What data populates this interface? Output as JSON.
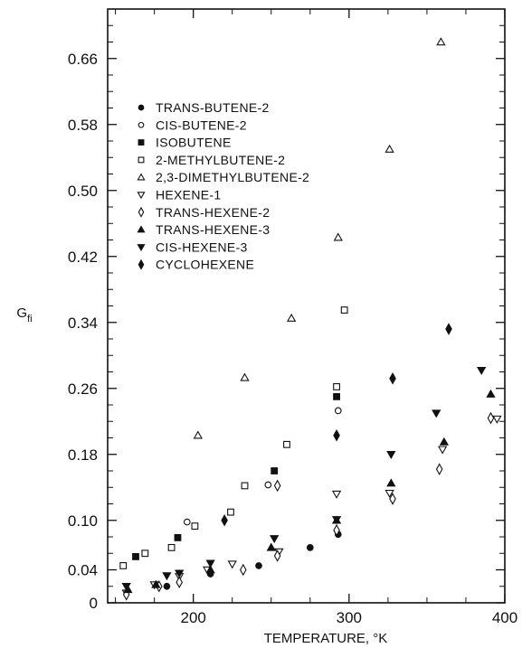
{
  "chart_data": {
    "type": "scatter",
    "xlabel": "TEMPERATURE, °K",
    "ylabel": "G",
    "ylabel_sub": "fi",
    "xlim": [
      145,
      400
    ],
    "ylim": [
      0,
      0.72
    ],
    "x_ticks": [
      {
        "value": 200,
        "label": "200"
      },
      {
        "value": 300,
        "label": "300"
      },
      {
        "value": 400,
        "label": "400"
      }
    ],
    "x_minor_ticks": [
      150,
      175,
      225,
      250,
      275,
      325,
      350,
      375
    ],
    "y_ticks": [
      {
        "value": 0,
        "label": "0"
      },
      {
        "value": 0.04,
        "label": "0.04"
      },
      {
        "value": 0.1,
        "label": "0.10"
      },
      {
        "value": 0.18,
        "label": "0.18"
      },
      {
        "value": 0.26,
        "label": "0.26"
      },
      {
        "value": 0.34,
        "label": "0.34"
      },
      {
        "value": 0.42,
        "label": "0.42"
      },
      {
        "value": 0.5,
        "label": "0.50"
      },
      {
        "value": 0.58,
        "label": "0.58"
      },
      {
        "value": 0.66,
        "label": "0.66"
      }
    ],
    "y_minor_ticks": [
      0.02,
      0.06,
      0.08,
      0.12,
      0.14,
      0.16,
      0.2,
      0.22,
      0.24,
      0.28,
      0.3,
      0.32,
      0.36,
      0.38,
      0.4,
      0.44,
      0.46,
      0.48,
      0.52,
      0.54,
      0.56,
      0.6,
      0.62,
      0.64,
      0.68,
      0.7
    ],
    "grid": false,
    "legend_position": "upper-left",
    "series": [
      {
        "name": "TRANS-BUTENE-2",
        "marker": "circle-filled",
        "points": [
          [
            183,
            0.02
          ],
          [
            211,
            0.035
          ],
          [
            242,
            0.045
          ],
          [
            275,
            0.067
          ],
          [
            293,
            0.083
          ]
        ]
      },
      {
        "name": "CIS-BUTENE-2",
        "marker": "circle-open",
        "points": [
          [
            196,
            0.098
          ],
          [
            248,
            0.143
          ],
          [
            293,
            0.233
          ]
        ]
      },
      {
        "name": "ISOBUTENE",
        "marker": "square-filled",
        "points": [
          [
            163,
            0.056
          ],
          [
            190,
            0.079
          ],
          [
            252,
            0.16
          ],
          [
            292,
            0.25
          ]
        ]
      },
      {
        "name": "2-METHYLBUTENE-2",
        "marker": "square-open",
        "points": [
          [
            155,
            0.045
          ],
          [
            169,
            0.06
          ],
          [
            186,
            0.067
          ],
          [
            201,
            0.093
          ],
          [
            224,
            0.11
          ],
          [
            233,
            0.142
          ],
          [
            260,
            0.192
          ],
          [
            292,
            0.262
          ],
          [
            297,
            0.355
          ]
        ]
      },
      {
        "name": "2,3-DIMETHYLBUTENE-2",
        "marker": "triangle-up-open",
        "points": [
          [
            203,
            0.203
          ],
          [
            233,
            0.273
          ],
          [
            263,
            0.345
          ],
          [
            293,
            0.443
          ],
          [
            326,
            0.55
          ],
          [
            359,
            0.68
          ]
        ]
      },
      {
        "name": "HEXENE-1",
        "marker": "triangle-down-open",
        "points": [
          [
            157,
            0.012
          ],
          [
            175,
            0.022
          ],
          [
            191,
            0.032
          ],
          [
            209,
            0.04
          ],
          [
            225,
            0.047
          ],
          [
            255,
            0.062
          ],
          [
            292,
            0.132
          ],
          [
            326,
            0.133
          ],
          [
            360,
            0.186
          ],
          [
            395,
            0.223
          ]
        ]
      },
      {
        "name": "TRANS-HEXENE-2",
        "marker": "diamond-open",
        "points": [
          [
            157,
            0.01
          ],
          [
            178,
            0.02
          ],
          [
            191,
            0.025
          ],
          [
            232,
            0.04
          ],
          [
            254,
            0.057
          ],
          [
            254,
            0.142
          ],
          [
            292,
            0.088
          ],
          [
            328,
            0.126
          ],
          [
            358,
            0.162
          ],
          [
            391,
            0.224
          ]
        ]
      },
      {
        "name": "TRANS-HEXENE-3",
        "marker": "triangle-up-filled",
        "points": [
          [
            158,
            0.016
          ],
          [
            176,
            0.022
          ],
          [
            211,
            0.04
          ],
          [
            250,
            0.067
          ],
          [
            292,
            0.1
          ],
          [
            327,
            0.145
          ],
          [
            361,
            0.195
          ],
          [
            391,
            0.253
          ]
        ]
      },
      {
        "name": "CIS-HEXENE-3",
        "marker": "triangle-down-filled",
        "points": [
          [
            157,
            0.02
          ],
          [
            183,
            0.033
          ],
          [
            191,
            0.036
          ],
          [
            211,
            0.048
          ],
          [
            252,
            0.078
          ],
          [
            292,
            0.101
          ],
          [
            327,
            0.18
          ],
          [
            356,
            0.23
          ],
          [
            385,
            0.282
          ]
        ]
      },
      {
        "name": "CYCLOHEXENE",
        "marker": "diamond-filled",
        "points": [
          [
            220,
            0.1
          ],
          [
            292,
            0.203
          ],
          [
            328,
            0.272
          ],
          [
            364,
            0.332
          ]
        ]
      }
    ]
  }
}
